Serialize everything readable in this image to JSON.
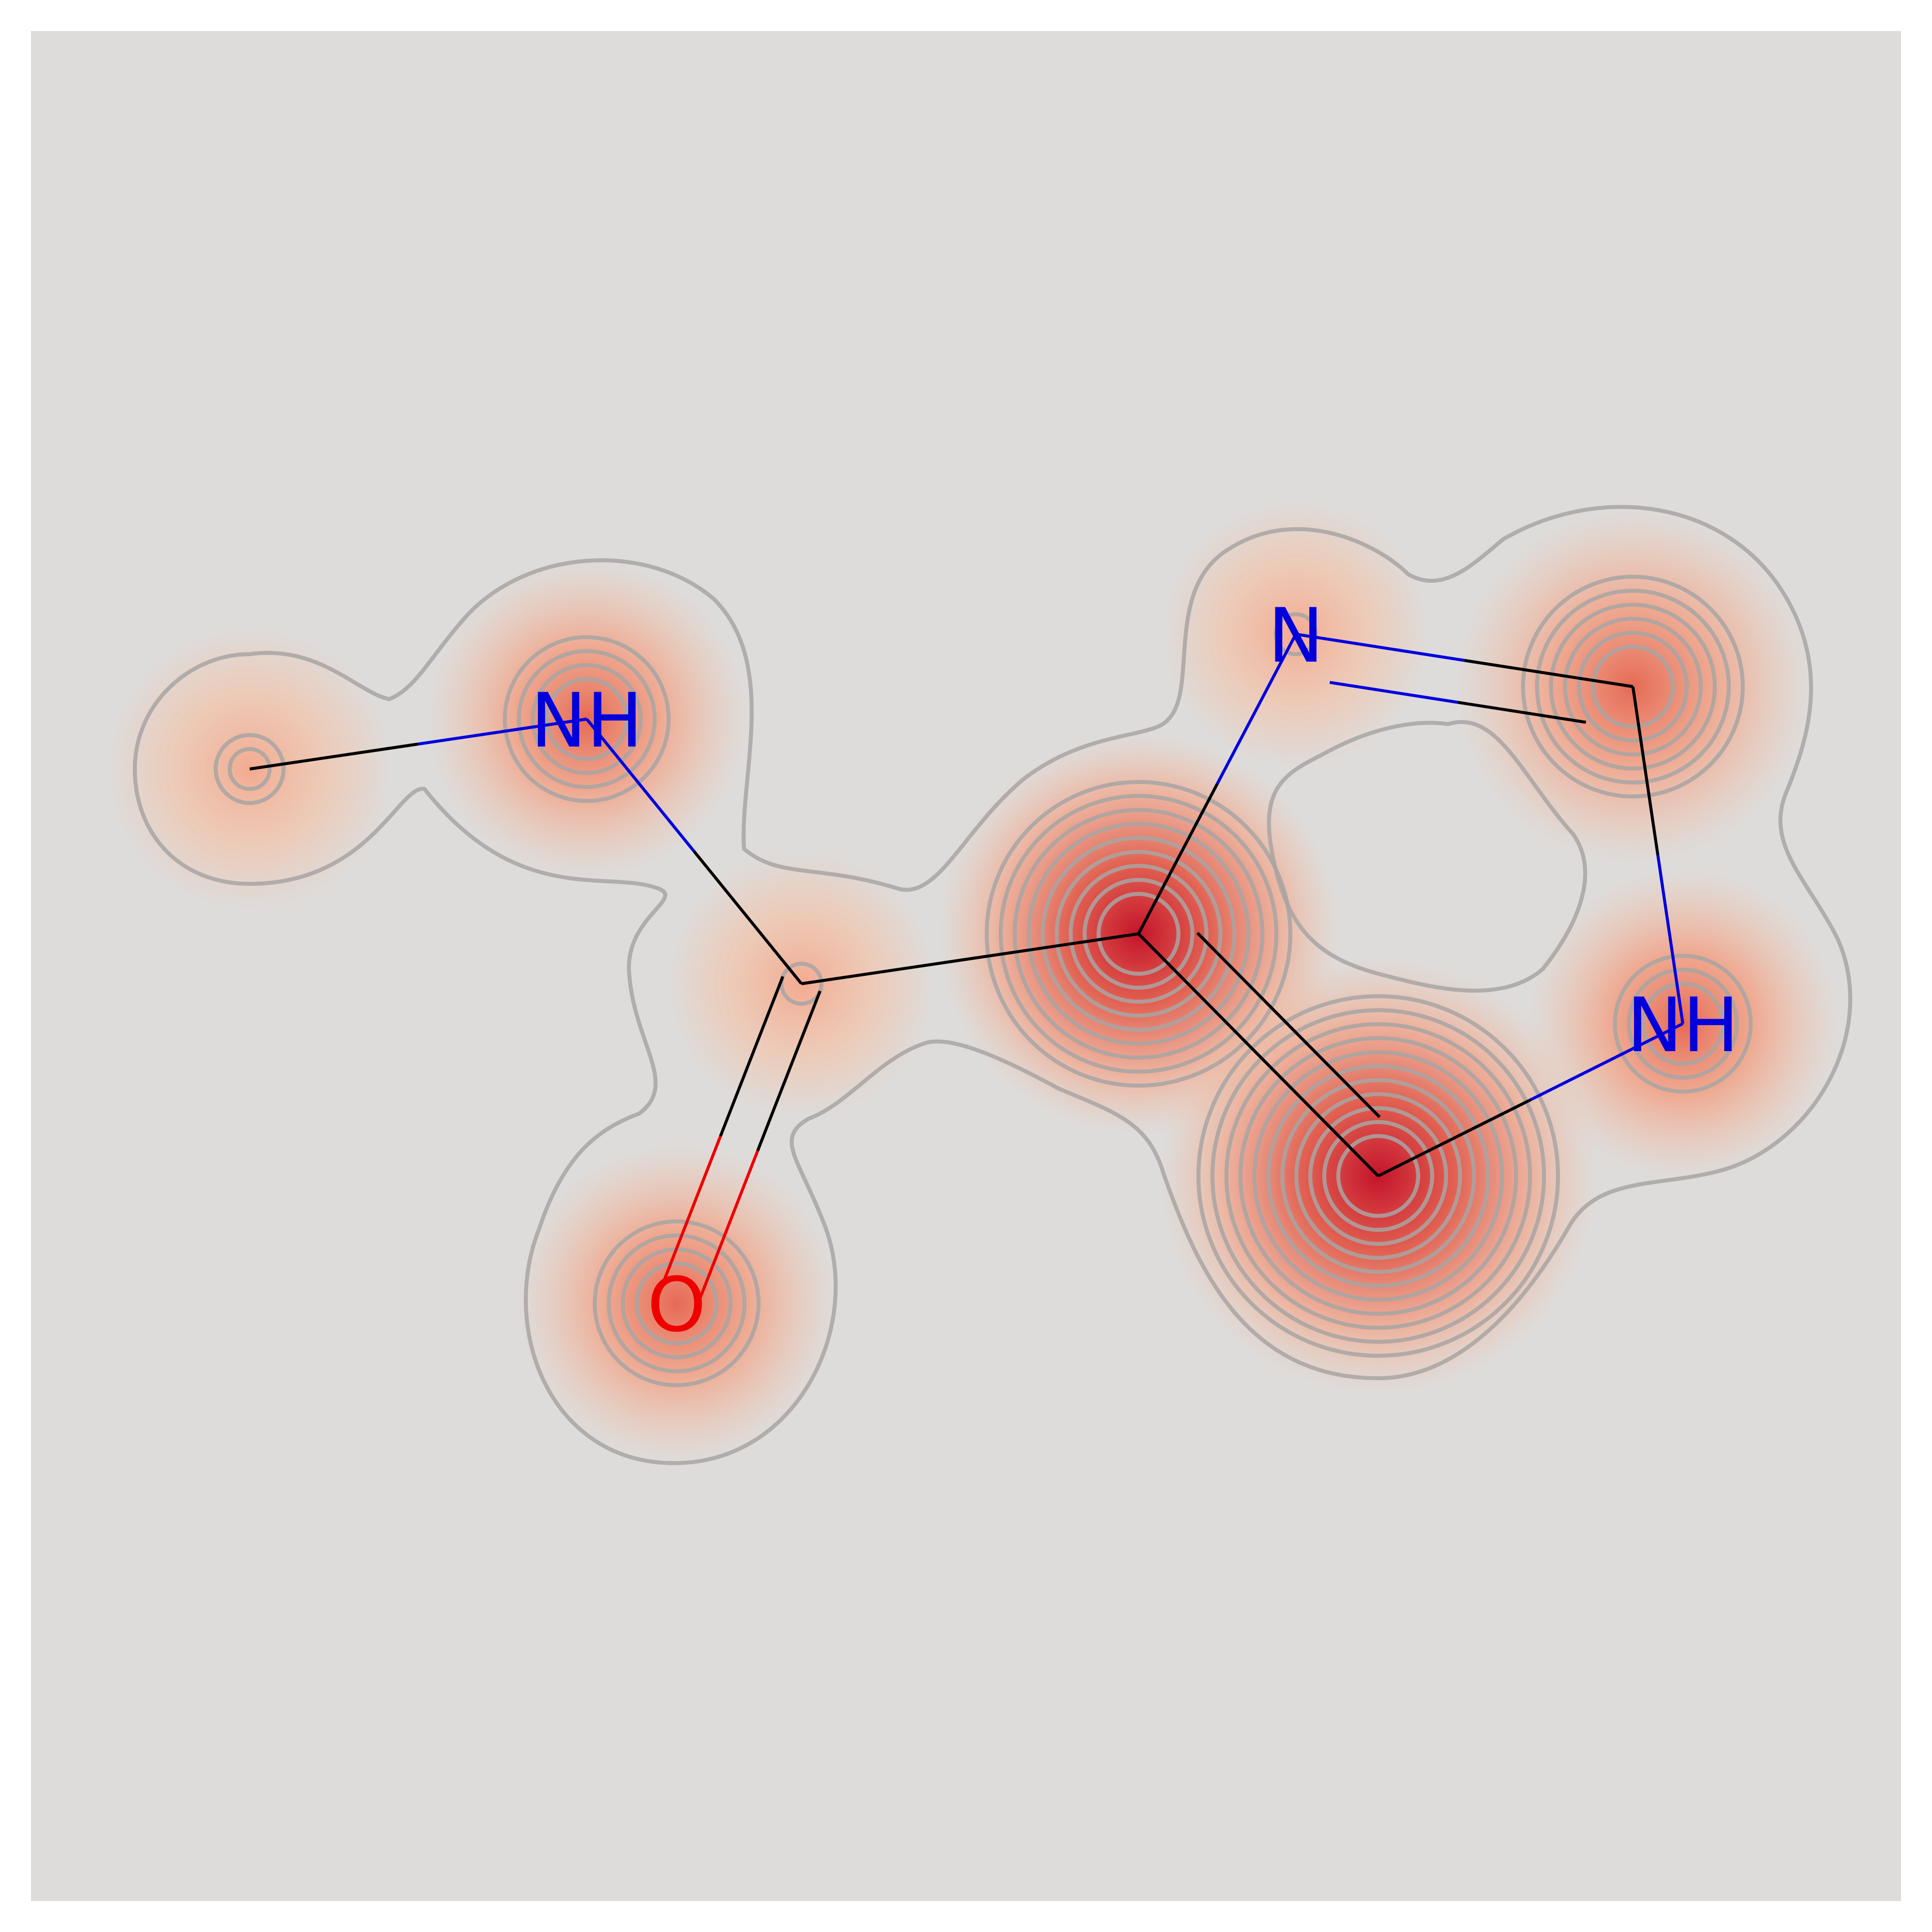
{
  "diagram": {
    "colors": {
      "background": "#dddcdb",
      "frame": "#ffffff",
      "carbon_bond": "#000000",
      "nitrogen": "#0000dd",
      "oxygen": "#ee0000",
      "contour": "#a8a4a3",
      "heat_low": "#f6c0a3",
      "heat_high": "#c4142a"
    },
    "atoms": [
      {
        "id": "c-methyl",
        "element": "C",
        "label": ""
      },
      {
        "id": "n-amide",
        "element": "N",
        "label": "NH"
      },
      {
        "id": "c-carbonyl",
        "element": "C",
        "label": ""
      },
      {
        "id": "o-carbonyl",
        "element": "O",
        "label": "O"
      },
      {
        "id": "c-ring-4",
        "element": "C",
        "label": ""
      },
      {
        "id": "n-ring-3",
        "element": "N",
        "label": "N"
      },
      {
        "id": "c-ring-2",
        "element": "C",
        "label": ""
      },
      {
        "id": "n-ring-1",
        "element": "N",
        "label": "NH"
      },
      {
        "id": "c-ring-5",
        "element": "C",
        "label": ""
      }
    ],
    "bonds": [
      {
        "from": "c-methyl",
        "to": "n-amide",
        "order": 1
      },
      {
        "from": "n-amide",
        "to": "c-carbonyl",
        "order": 1
      },
      {
        "from": "c-carbonyl",
        "to": "o-carbonyl",
        "order": 2
      },
      {
        "from": "c-carbonyl",
        "to": "c-ring-4",
        "order": 1
      },
      {
        "from": "c-ring-4",
        "to": "n-ring-3",
        "order": 1
      },
      {
        "from": "n-ring-3",
        "to": "c-ring-2",
        "order": 2
      },
      {
        "from": "c-ring-2",
        "to": "n-ring-1",
        "order": 1
      },
      {
        "from": "n-ring-1",
        "to": "c-ring-5",
        "order": 1
      },
      {
        "from": "c-ring-5",
        "to": "c-ring-4",
        "order": 2
      }
    ],
    "atom_weights": [
      {
        "atom": "c-methyl",
        "weight": 0.15
      },
      {
        "atom": "n-amide",
        "weight": 0.35
      },
      {
        "atom": "c-carbonyl",
        "weight": 0.05
      },
      {
        "atom": "o-carbonyl",
        "weight": 0.35
      },
      {
        "atom": "c-ring-4",
        "weight": 0.8
      },
      {
        "atom": "n-ring-3",
        "weight": 0.05
      },
      {
        "atom": "c-ring-2",
        "weight": 0.55
      },
      {
        "atom": "n-ring-1",
        "weight": 0.3
      },
      {
        "atom": "c-ring-5",
        "weight": 1.0
      }
    ]
  }
}
